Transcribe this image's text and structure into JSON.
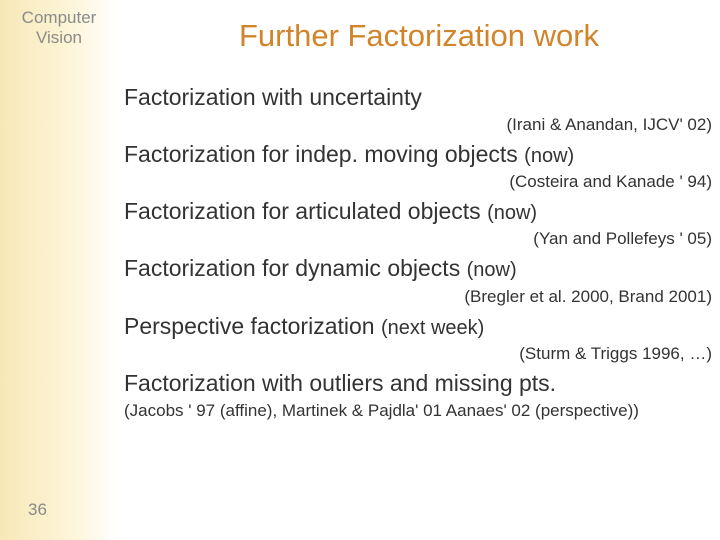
{
  "sidebar": {
    "title_line1": "Computer",
    "title_line2": "Vision",
    "page_number": "36"
  },
  "title": "Further Factorization work",
  "items": [
    {
      "heading": "Factorization with uncertainty",
      "note": "",
      "cite": "(Irani & Anandan, IJCV' 02)",
      "cite_align": "right"
    },
    {
      "heading": "Factorization for indep. moving objects ",
      "note": "(now)",
      "cite": "(Costeira and Kanade ' 94)",
      "cite_align": "right"
    },
    {
      "heading": "Factorization for articulated objects ",
      "note": "(now)",
      "cite": "(Yan and Pollefeys ' 05)",
      "cite_align": "right"
    },
    {
      "heading": "Factorization for dynamic objects ",
      "note": "(now)",
      "cite": "(Bregler et al. 2000, Brand 2001)",
      "cite_align": "right"
    },
    {
      "heading": "Perspective factorization ",
      "note": "(next week)",
      "cite": "(Sturm & Triggs 1996, …)",
      "cite_align": "right"
    },
    {
      "heading": "Factorization with outliers and missing pts.",
      "note": "",
      "cite": "(Jacobs ' 97 (affine), Martinek & Pajdla' 01 Aanaes' 02 (perspective))",
      "cite_align": "left"
    }
  ],
  "colors": {
    "title_color": "#d2842b",
    "text_color": "#333333",
    "sidebar_text": "#8a8a8a",
    "sidebar_grad_start": "#f7e8b8",
    "sidebar_grad_end": "#ffffff",
    "background": "#ffffff"
  },
  "fontsizes_pt": {
    "slide_title": 23,
    "heading": 17,
    "note": 15,
    "cite": 13,
    "sidebar_title": 13,
    "page_num": 13
  }
}
